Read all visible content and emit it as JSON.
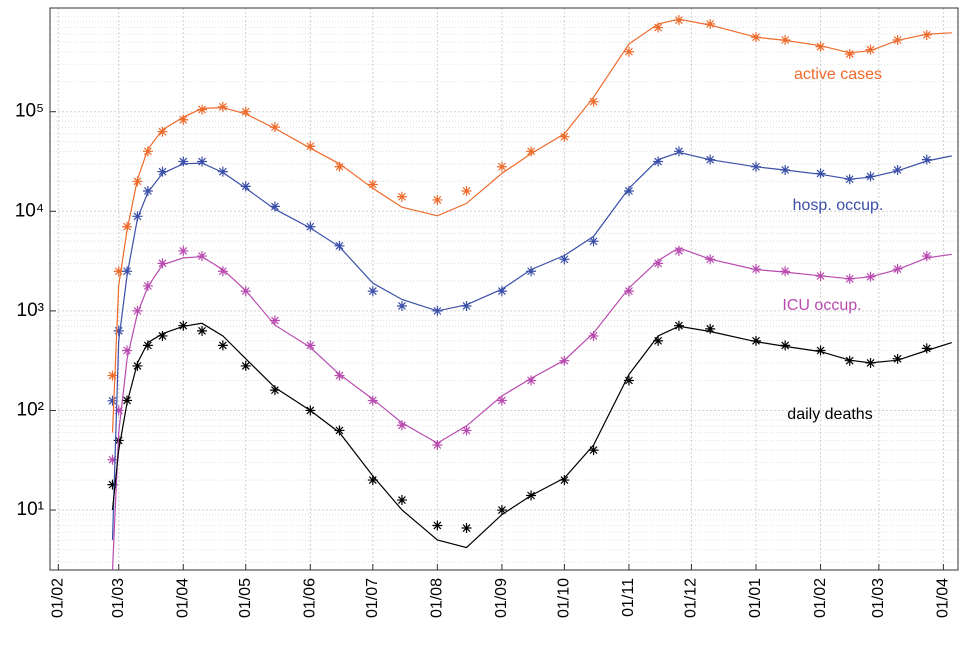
{
  "chart_data": {
    "type": "line",
    "log_y": true,
    "grid": true,
    "minor_grid": true,
    "x": [
      "27/02",
      "01/03",
      "05/03",
      "10/03",
      "15/03",
      "22/03",
      "01/04",
      "10/04",
      "20/04",
      "01/05",
      "15/05",
      "01/06",
      "15/06",
      "01/07",
      "15/07",
      "01/08",
      "15/08",
      "01/09",
      "15/09",
      "01/10",
      "15/10",
      "01/11",
      "15/11",
      "25/11",
      "10/12",
      "01/01",
      "15/01",
      "01/02",
      "15/02",
      "25/02",
      "10/03",
      "24/03",
      "05/04"
    ],
    "xlim": [
      "28/01",
      "08/04"
    ],
    "xticks": [
      "01/02",
      "01/03",
      "01/04",
      "01/05",
      "01/06",
      "01/07",
      "01/08",
      "01/09",
      "01/10",
      "01/11",
      "01/12",
      "01/01",
      "01/02",
      "01/03",
      "01/04"
    ],
    "ylim": [
      2.5,
      1100000
    ],
    "yticks": [
      {
        "value": 10,
        "label": "10¹"
      },
      {
        "value": 100,
        "label": "10²"
      },
      {
        "value": 1000,
        "label": "10³"
      },
      {
        "value": 10000,
        "label": "10⁴"
      },
      {
        "value": 100000,
        "label": "10⁵"
      }
    ],
    "series": [
      {
        "name": "active cases",
        "color": "#ee6a2b",
        "style": "markers",
        "values": [
          224,
          2500,
          7000,
          20000,
          40000,
          63000,
          83000,
          105000,
          112000,
          100000,
          70000,
          45000,
          28000,
          18600,
          14000,
          13000,
          16000,
          28000,
          40000,
          56000,
          126000,
          400000,
          700000,
          830000,
          760000,
          560000,
          525000,
          450000,
          380000,
          420000,
          525000,
          590000,
          null
        ]
      },
      {
        "name": "hosp. occup.",
        "color": "#3a4fa8",
        "style": "markers",
        "values": [
          125,
          630,
          2500,
          8900,
          16000,
          25000,
          31600,
          31600,
          25000,
          17800,
          11200,
          7000,
          4500,
          1580,
          1120,
          1000,
          1120,
          1580,
          2500,
          3300,
          5000,
          16000,
          31600,
          40000,
          33000,
          28000,
          26000,
          24000,
          21000,
          22400,
          26000,
          33000,
          null
        ]
      },
      {
        "name": "ICU occup.",
        "color": "#b94bb0",
        "style": "markers",
        "values": [
          32,
          100,
          400,
          1000,
          1780,
          3000,
          4000,
          3550,
          2500,
          1580,
          800,
          450,
          224,
          126,
          71,
          45,
          63,
          126,
          200,
          316,
          560,
          1580,
          3000,
          4000,
          3300,
          2630,
          2500,
          2240,
          2100,
          2200,
          2630,
          3550,
          null
        ]
      },
      {
        "name": "daily deaths",
        "color": "#000000",
        "style": "markers",
        "values": [
          18,
          50,
          126,
          280,
          450,
          560,
          710,
          630,
          450,
          280,
          160,
          100,
          63,
          20,
          12.6,
          7,
          6.6,
          10,
          14,
          20,
          40,
          200,
          500,
          710,
          660,
          500,
          450,
          400,
          316,
          300,
          330,
          420,
          null
        ]
      },
      {
        "color": "#ee6a2b",
        "style": "line",
        "values": [
          60,
          1800,
          6500,
          21000,
          42000,
          66000,
          88000,
          108000,
          110000,
          95000,
          68000,
          43000,
          30000,
          17000,
          11000,
          9000,
          12000,
          24000,
          38000,
          60000,
          140000,
          480000,
          760000,
          850000,
          740000,
          560000,
          520000,
          460000,
          390000,
          410000,
          520000,
          600000,
          620000
        ]
      },
      {
        "color": "#3a4fa8",
        "style": "line",
        "values": [
          5,
          500,
          2300,
          8500,
          15500,
          24000,
          30000,
          30500,
          24500,
          17000,
          10500,
          6800,
          4400,
          1900,
          1300,
          1000,
          1150,
          1650,
          2600,
          3600,
          5600,
          17000,
          33000,
          39000,
          33000,
          28000,
          26000,
          23500,
          21000,
          22000,
          25500,
          32000,
          36000
        ]
      },
      {
        "color": "#b94bb0",
        "style": "line",
        "values": [
          2.5,
          60,
          330,
          950,
          1750,
          2900,
          3400,
          3500,
          2600,
          1600,
          720,
          430,
          230,
          130,
          75,
          47,
          70,
          140,
          210,
          320,
          600,
          1700,
          3200,
          4300,
          3300,
          2600,
          2450,
          2250,
          2100,
          2200,
          2600,
          3400,
          3700
        ]
      },
      {
        "color": "#000000",
        "style": "line",
        "values": [
          10,
          40,
          120,
          300,
          480,
          590,
          700,
          750,
          560,
          330,
          170,
          100,
          60,
          22,
          10,
          5,
          4.2,
          9,
          14,
          21,
          45,
          230,
          560,
          700,
          620,
          490,
          440,
          390,
          320,
          300,
          320,
          400,
          480
        ]
      }
    ]
  }
}
